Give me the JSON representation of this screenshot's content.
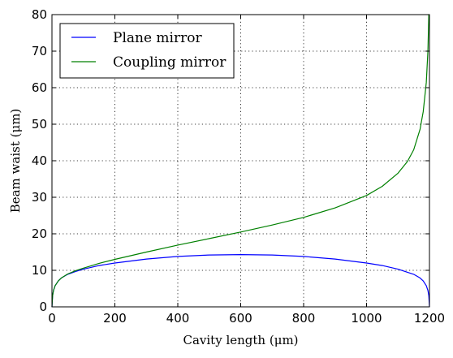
{
  "chart_data": {
    "type": "line",
    "title": "",
    "xlabel": "Cavity length (μm)",
    "ylabel": "Beam waist (μm)",
    "xlim": [
      0,
      1200
    ],
    "ylim": [
      0,
      80
    ],
    "xticks": [
      "0",
      "200",
      "400",
      "600",
      "800",
      "1000",
      "1200"
    ],
    "yticks": [
      "0",
      "10",
      "20",
      "30",
      "40",
      "50",
      "60",
      "70",
      "80"
    ],
    "grid": true,
    "legend_position": "top-left",
    "series": [
      {
        "name": "Plane mirror",
        "color": "#0000ff",
        "x": [
          0,
          2,
          5,
          10,
          20,
          30,
          50,
          75,
          100,
          150,
          200,
          300,
          400,
          500,
          600,
          700,
          800,
          900,
          1000,
          1050,
          1100,
          1150,
          1170,
          1180,
          1190,
          1195,
          1198,
          1200
        ],
        "y": [
          0,
          3.1,
          4.5,
          5.8,
          7.1,
          7.9,
          8.9,
          9.7,
          10.3,
          11.3,
          12.0,
          13.1,
          13.8,
          14.2,
          14.3,
          14.2,
          13.8,
          13.1,
          12.0,
          11.3,
          10.3,
          8.9,
          7.9,
          7.1,
          5.8,
          4.5,
          3.1,
          0
        ]
      },
      {
        "name": "Coupling mirror",
        "color": "#008000",
        "x": [
          0,
          2,
          5,
          10,
          20,
          30,
          50,
          75,
          100,
          150,
          200,
          300,
          400,
          500,
          600,
          700,
          800,
          900,
          1000,
          1050,
          1100,
          1130,
          1150,
          1170,
          1180,
          1190,
          1195,
          1198,
          1200
        ],
        "y": [
          0,
          3.1,
          4.5,
          5.8,
          7.1,
          7.9,
          9.0,
          9.9,
          10.6,
          11.9,
          13.0,
          15.0,
          16.9,
          18.7,
          20.5,
          22.4,
          24.5,
          27.1,
          30.5,
          33.0,
          36.6,
          39.8,
          43.0,
          48.6,
          53.4,
          61.4,
          70.0,
          80.0,
          80.0
        ]
      }
    ]
  }
}
